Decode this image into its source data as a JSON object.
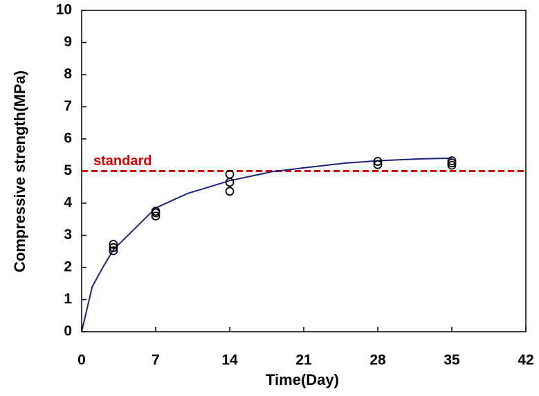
{
  "chart_data": {
    "type": "scatter",
    "x_label": "Time(Day)",
    "y_label": "Compressive strength(MPa)",
    "xlim": [
      0,
      42
    ],
    "xticks": [
      0,
      7,
      14,
      21,
      28,
      35,
      42
    ],
    "ylim": [
      0,
      10
    ],
    "yticks": [
      0,
      1,
      2,
      3,
      4,
      5,
      6,
      7,
      8,
      9,
      10
    ],
    "grid": false,
    "series": [
      {
        "type": "line",
        "color": "#1a237e",
        "x": [
          0,
          1,
          2,
          3,
          5,
          7,
          10,
          14,
          18,
          21,
          25,
          28,
          32,
          35
        ],
        "values": [
          0,
          1.4,
          2.0,
          2.55,
          3.2,
          3.85,
          4.3,
          4.7,
          4.98,
          5.1,
          5.25,
          5.32,
          5.38,
          5.4
        ]
      },
      {
        "type": "scatter",
        "color": "#000000",
        "x": [
          3,
          3,
          3,
          7,
          7,
          7,
          14,
          14,
          14,
          28,
          28,
          35,
          35,
          35
        ],
        "values": [
          2.72,
          2.62,
          2.52,
          3.75,
          3.7,
          3.6,
          4.9,
          4.65,
          4.37,
          5.3,
          5.2,
          5.32,
          5.25,
          5.18
        ]
      }
    ],
    "reference_lines": [
      {
        "value": 5,
        "label": "standard",
        "color": "#e00000"
      }
    ]
  }
}
